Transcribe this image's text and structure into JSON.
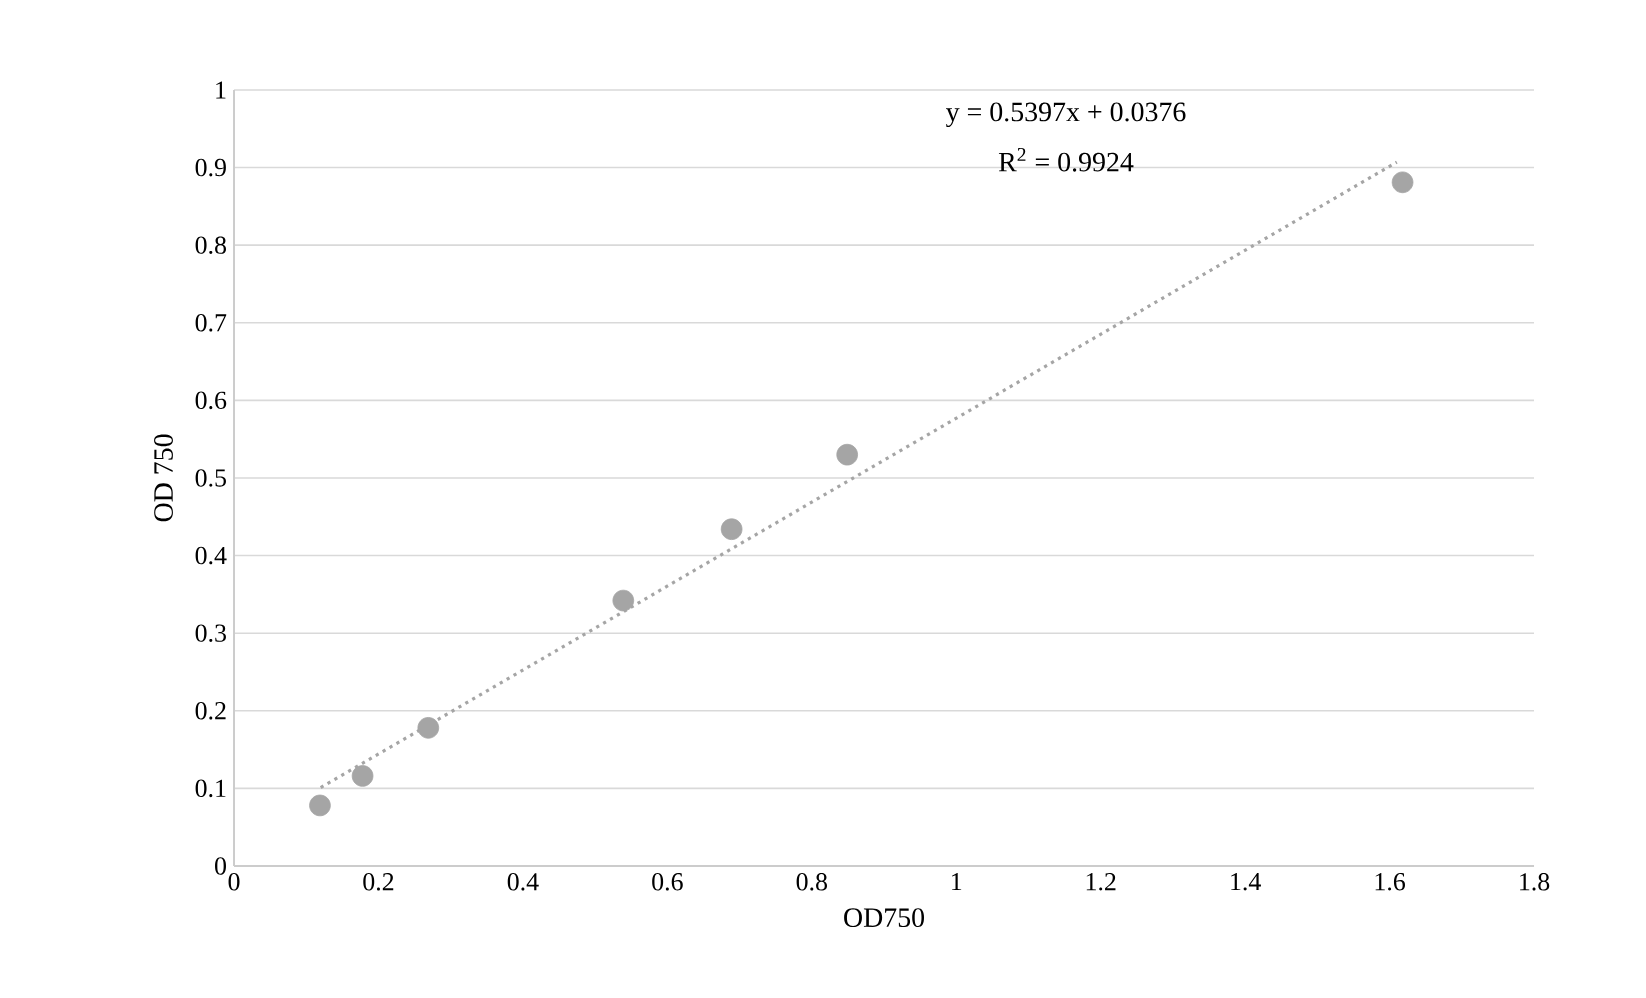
{
  "chart_data": {
    "type": "scatter",
    "xlabel": "OD750",
    "ylabel": "OD 750",
    "annotations": [
      "y = 0.5397x + 0.0376",
      "R$^{2}$ = 0.9924"
    ],
    "series": [
      {
        "color": "#a5a5a5",
        "marker": "circle",
        "x": [
          0.119,
          0.178,
          0.269,
          0.539,
          0.689,
          0.849,
          1.618
        ],
        "values": [
          0.078,
          0.116,
          0.178,
          0.342,
          0.434,
          0.53,
          0.881
        ]
      },
      {
        "type": "line",
        "color": "#a5a5a5",
        "line_style": "dotted",
        "x": [
          0.12,
          1.61
        ],
        "values": [
          0.101,
          0.907
        ]
      }
    ],
    "xlim": [
      0,
      1.8
    ],
    "xticks": [
      0,
      0.2,
      0.4,
      0.6,
      0.8,
      1,
      1.2,
      1.4,
      1.6,
      1.8
    ],
    "ylim": [
      0,
      1
    ],
    "yticks": [
      0,
      0.1,
      0.2,
      0.3,
      0.4,
      0.5,
      0.6,
      0.7,
      0.8,
      0.9,
      1
    ],
    "grid": "y"
  }
}
